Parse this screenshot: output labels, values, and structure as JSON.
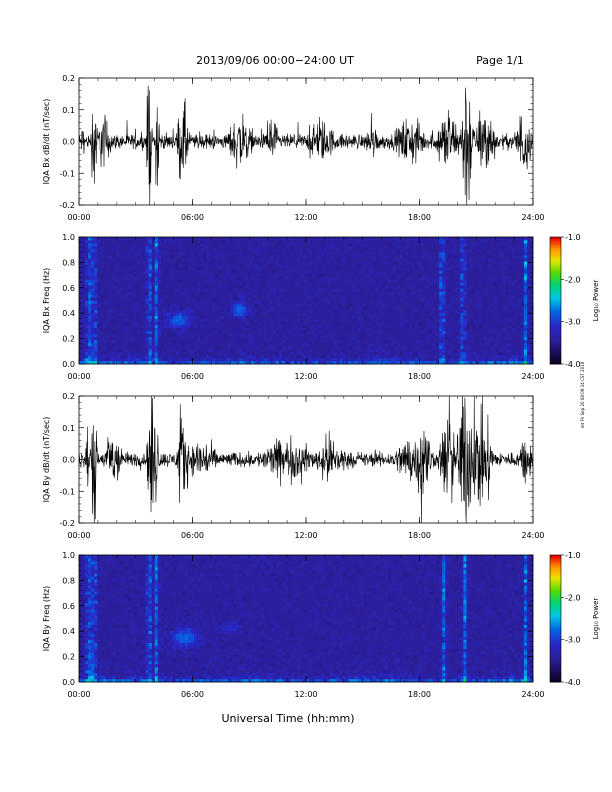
{
  "header": {
    "title": "2013/09/06  00:00−24:00 UT",
    "page": "Page 1/1"
  },
  "footer": {
    "xlabel": "Universal Time (hh:mm)"
  },
  "side_stamp": "ret Fri Sep 20 08:09:34 CST 2019",
  "colors": {
    "spectro_bg": "#2c1f9c",
    "trace": "#000000"
  },
  "colorbar": {
    "label": "Log₁₀ Power",
    "ticks": [
      "-1.0",
      "-2.0",
      "-3.0",
      "-4.0"
    ],
    "range": [
      -4.0,
      -1.0
    ]
  },
  "chart_data": [
    {
      "type": "line",
      "ylabel": "IQA Bx dB/dt (nT/sec)",
      "xlim": [
        0,
        24
      ],
      "ylim": [
        -0.2,
        0.2
      ],
      "x_ticks": [
        "00:00",
        "06:00",
        "12:00",
        "18:00",
        "24:00"
      ],
      "y_ticks": [
        "0.2",
        "0.1",
        "0.0",
        "-0.1",
        "-0.2"
      ],
      "baseline_amplitude": 0.02,
      "activity": [
        {
          "t": 0.2,
          "w": 0.1,
          "amp": 0.05
        },
        {
          "t": 0.8,
          "w": 0.12,
          "amp": 0.22
        },
        {
          "t": 1.3,
          "w": 0.4,
          "amp": 0.08
        },
        {
          "t": 3.7,
          "w": 0.12,
          "amp": 0.22
        },
        {
          "t": 4.15,
          "w": 0.1,
          "amp": 0.22
        },
        {
          "t": 5.5,
          "w": 0.3,
          "amp": 0.12
        },
        {
          "t": 8.5,
          "w": 0.6,
          "amp": 0.08
        },
        {
          "t": 10.2,
          "w": 0.3,
          "amp": 0.08
        },
        {
          "t": 12.8,
          "w": 0.8,
          "amp": 0.06
        },
        {
          "t": 15.5,
          "w": 0.4,
          "amp": 0.05
        },
        {
          "t": 17.5,
          "w": 0.8,
          "amp": 0.07
        },
        {
          "t": 19.5,
          "w": 0.6,
          "amp": 0.09
        },
        {
          "t": 20.5,
          "w": 0.3,
          "amp": 0.22
        },
        {
          "t": 21.5,
          "w": 0.5,
          "amp": 0.1
        },
        {
          "t": 23.5,
          "w": 0.4,
          "amp": 0.1
        }
      ]
    },
    {
      "type": "heatmap",
      "ylabel": "IQA Bx Freq (Hz)",
      "xlim": [
        0,
        24
      ],
      "ylim": [
        0,
        1.0
      ],
      "x_ticks": [
        "00:00",
        "06:00",
        "12:00",
        "18:00",
        "24:00"
      ],
      "y_ticks": [
        "1.0",
        "0.8",
        "0.6",
        "0.4",
        "0.2",
        "0.0"
      ],
      "power_range": [
        -4.0,
        -1.0
      ],
      "vertical_bursts": [
        0.5,
        0.8,
        3.7,
        4.1,
        19.2,
        20.3,
        23.6
      ],
      "blobs": [
        {
          "t": 5.3,
          "f": 0.35,
          "dt": 0.7,
          "df": 0.08,
          "power": -2.8
        },
        {
          "t": 8.5,
          "f": 0.43,
          "dt": 0.5,
          "df": 0.07,
          "power": -2.8
        }
      ]
    },
    {
      "type": "line",
      "ylabel": "IQA By dB/dt (nT/sec)",
      "xlim": [
        0,
        24
      ],
      "ylim": [
        -0.2,
        0.2
      ],
      "x_ticks": [
        "00:00",
        "06:00",
        "12:00",
        "18:00",
        "24:00"
      ],
      "y_ticks": [
        "0.2",
        "0.1",
        "0.0",
        "-0.1",
        "-0.2"
      ],
      "baseline_amplitude": 0.02,
      "activity": [
        {
          "t": 0.5,
          "w": 0.15,
          "amp": 0.1
        },
        {
          "t": 0.8,
          "w": 0.12,
          "amp": 0.22
        },
        {
          "t": 1.8,
          "w": 0.4,
          "amp": 0.1
        },
        {
          "t": 3.9,
          "w": 0.25,
          "amp": 0.22
        },
        {
          "t": 5.5,
          "w": 0.3,
          "amp": 0.12
        },
        {
          "t": 6.5,
          "w": 0.8,
          "amp": 0.06
        },
        {
          "t": 11.0,
          "w": 1.5,
          "amp": 0.06
        },
        {
          "t": 13.3,
          "w": 0.8,
          "amp": 0.07
        },
        {
          "t": 17.5,
          "w": 0.8,
          "amp": 0.07
        },
        {
          "t": 18.2,
          "w": 0.4,
          "amp": 0.13
        },
        {
          "t": 19.5,
          "w": 0.4,
          "amp": 0.14
        },
        {
          "t": 20.4,
          "w": 0.4,
          "amp": 0.22
        },
        {
          "t": 21.2,
          "w": 0.6,
          "amp": 0.15
        },
        {
          "t": 23.6,
          "w": 0.3,
          "amp": 0.08
        }
      ]
    },
    {
      "type": "heatmap",
      "ylabel": "IQA By Freq (Hz)",
      "xlim": [
        0,
        24
      ],
      "ylim": [
        0,
        1.0
      ],
      "x_ticks": [
        "00:00",
        "06:00",
        "12:00",
        "18:00",
        "24:00"
      ],
      "y_ticks": [
        "1.0",
        "0.8",
        "0.6",
        "0.4",
        "0.2",
        "0.0"
      ],
      "power_range": [
        -4.0,
        -1.0
      ],
      "vertical_bursts": [
        0.5,
        0.8,
        3.7,
        4.1,
        19.3,
        20.4,
        23.6
      ],
      "blobs": [
        {
          "t": 5.6,
          "f": 0.35,
          "dt": 0.9,
          "df": 0.09,
          "power": -2.8
        },
        {
          "t": 8.0,
          "f": 0.43,
          "dt": 0.6,
          "df": 0.05,
          "power": -3.1
        }
      ]
    }
  ]
}
